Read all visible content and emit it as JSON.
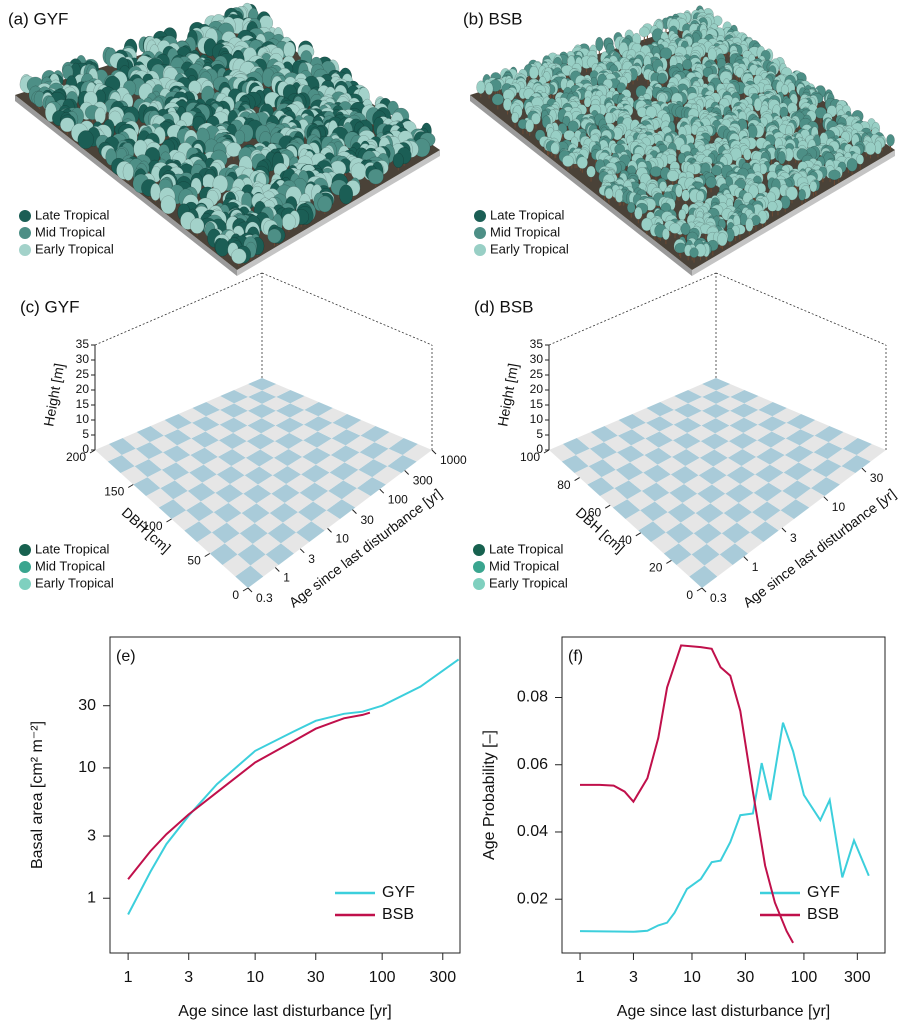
{
  "chart_data": [
    {
      "type": "scene",
      "title": "(a) GYF",
      "series": [
        {
          "name": "Late Tropical",
          "color": "#1b5e55"
        },
        {
          "name": "Mid Tropical",
          "color": "#4d8f86"
        },
        {
          "name": "Early Tropical",
          "color": "#a3d2ca"
        }
      ]
    },
    {
      "type": "scene",
      "title": "(b) BSB",
      "series": [
        {
          "name": "Late Tropical",
          "color": "#1b5e55"
        },
        {
          "name": "Mid Tropical",
          "color": "#4d8f86"
        },
        {
          "name": "Early Tropical",
          "color": "#98cfc5"
        }
      ]
    },
    {
      "type": "scatter3d",
      "title": "(c) GYF",
      "xlabel": "Age since last disturbance [yr]",
      "ylabel": "DBH [cm]",
      "zlabel": "Height [m]",
      "xlog": true,
      "xlim": [
        0.3,
        1000
      ],
      "xticks": [
        0.3,
        1,
        3,
        10,
        30,
        100,
        300,
        1000
      ],
      "ylim": [
        0,
        200
      ],
      "yticks": [
        0,
        50,
        100,
        150,
        200
      ],
      "zlim": [
        0,
        35
      ],
      "zticks": [
        0,
        5,
        10,
        15,
        20,
        25,
        30,
        35
      ],
      "series": [
        {
          "name": "Late Tropical",
          "color": "#17614f"
        },
        {
          "name": "Mid Tropical",
          "color": "#3aa58f"
        },
        {
          "name": "Early Tropical",
          "color": "#7fd0bf"
        }
      ]
    },
    {
      "type": "scatter3d",
      "title": "(d) BSB",
      "xlabel": "Age since last disturbance [yr]",
      "ylabel": "DBH [cm]",
      "zlabel": "Height [m]",
      "xlog": true,
      "xlim": [
        0.3,
        60
      ],
      "xticks": [
        0.3,
        1,
        3,
        10,
        30
      ],
      "ylim": [
        0,
        100
      ],
      "yticks": [
        0,
        20,
        40,
        60,
        80,
        100
      ],
      "zlim": [
        0,
        35
      ],
      "zticks": [
        0,
        5,
        10,
        15,
        20,
        25,
        30,
        35
      ],
      "series": [
        {
          "name": "Late Tropical",
          "color": "#17614f"
        },
        {
          "name": "Mid Tropical",
          "color": "#3aa58f"
        },
        {
          "name": "Early Tropical",
          "color": "#7fd0bf"
        }
      ]
    },
    {
      "type": "line",
      "title": "(e)",
      "xlabel": "Age since last disturbance [yr]",
      "ylabel": "Basal area [cm² m⁻²]",
      "xlog": true,
      "ylog": true,
      "xlim": [
        0.72,
        410
      ],
      "xticks": [
        1,
        3,
        10,
        30,
        100,
        300
      ],
      "ylim": [
        0.38,
        101
      ],
      "yticks": [
        1,
        3,
        10,
        30
      ],
      "legend": "lower right",
      "series": [
        {
          "name": "GYF",
          "color": "#3ccfdc",
          "x": [
            1,
            1.5,
            2,
            3,
            5,
            10,
            20,
            30,
            50,
            70,
            100,
            200,
            400
          ],
          "values": [
            0.75,
            1.6,
            2.6,
            4.3,
            7.5,
            13.5,
            19,
            23,
            26,
            27,
            30,
            42,
            68
          ]
        },
        {
          "name": "BSB",
          "color": "#c0104b",
          "x": [
            1,
            1.5,
            2,
            3,
            5,
            10,
            20,
            30,
            50,
            70,
            80
          ],
          "values": [
            1.4,
            2.3,
            3.1,
            4.4,
            6.5,
            11,
            16,
            20,
            24,
            25.5,
            26.5
          ]
        }
      ]
    },
    {
      "type": "line",
      "title": "(f)",
      "xlabel": "Age since last disturbance [yr]",
      "ylabel": "Age Probability [–]",
      "xlog": true,
      "ylog": false,
      "xlim": [
        0.69,
        530
      ],
      "xticks": [
        1,
        3,
        10,
        30,
        100,
        300
      ],
      "ylim": [
        0.004,
        0.098
      ],
      "yticks": [
        0.02,
        0.04,
        0.06,
        0.08
      ],
      "legend": "lower right",
      "series": [
        {
          "name": "GYF",
          "color": "#3ccfdc",
          "x": [
            1,
            2,
            3,
            4,
            5,
            6,
            7,
            9,
            12,
            15,
            18,
            22,
            27,
            35,
            42,
            50,
            65,
            80,
            100,
            140,
            170,
            220,
            280,
            380
          ],
          "values": [
            0.0105,
            0.0104,
            0.0103,
            0.0106,
            0.0122,
            0.013,
            0.016,
            0.023,
            0.026,
            0.031,
            0.0315,
            0.037,
            0.045,
            0.0455,
            0.0605,
            0.0495,
            0.0725,
            0.064,
            0.051,
            0.0435,
            0.0495,
            0.0265,
            0.0375,
            0.027
          ]
        },
        {
          "name": "BSB",
          "color": "#c0104b",
          "x": [
            1,
            1.5,
            2,
            2.5,
            3,
            4,
            5,
            6,
            8,
            12,
            15,
            18,
            22,
            27,
            35,
            45,
            55,
            70,
            80
          ],
          "values": [
            0.054,
            0.054,
            0.0538,
            0.052,
            0.049,
            0.056,
            0.068,
            0.083,
            0.0955,
            0.095,
            0.0945,
            0.089,
            0.0865,
            0.076,
            0.052,
            0.03,
            0.019,
            0.0105,
            0.007
          ]
        }
      ]
    }
  ]
}
